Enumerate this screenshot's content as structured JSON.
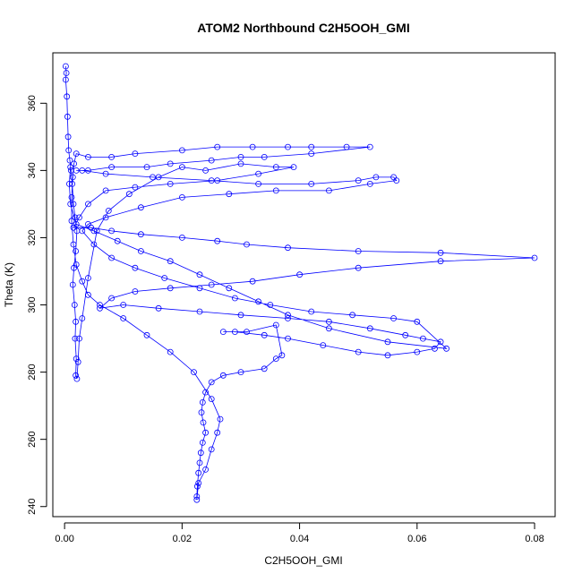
{
  "chart_data": {
    "type": "line",
    "title": "ATOM2 Northbound C2H5OOH_GMI",
    "xlabel": "C2H5OOH_GMI",
    "ylabel": "Theta (K)",
    "xlim": [
      -0.002,
      0.0835
    ],
    "ylim": [
      237,
      375
    ],
    "x_ticks": [
      0.0,
      0.02,
      0.04,
      0.06,
      0.08
    ],
    "x_tick_labels": [
      "0.00",
      "0.02",
      "0.04",
      "0.06",
      "0.08"
    ],
    "y_ticks": [
      240,
      260,
      280,
      300,
      320,
      340,
      360
    ],
    "y_tick_labels": [
      "240",
      "260",
      "280",
      "300",
      "320",
      "340",
      "360"
    ],
    "grid": false,
    "marker": "open-circle",
    "line_color": "#0000ff",
    "series": [
      {
        "points": [
          [
            0.0002,
            371
          ],
          [
            0.0003,
            369
          ],
          [
            0.0002,
            367
          ],
          [
            0.0004,
            362
          ],
          [
            0.0005,
            356
          ],
          [
            0.0006,
            350
          ],
          [
            0.0007,
            346
          ],
          [
            0.0009,
            343
          ],
          [
            0.0011,
            340
          ],
          [
            0.0013,
            336
          ],
          [
            0.0015,
            330
          ],
          [
            0.0018,
            326
          ],
          [
            0.0021,
            322
          ],
          [
            0.0019,
            316
          ],
          [
            0.0016,
            311
          ],
          [
            0.0014,
            306
          ],
          [
            0.0017,
            300
          ],
          [
            0.0019,
            295
          ],
          [
            0.0018,
            290
          ],
          [
            0.002,
            284
          ],
          [
            0.0019,
            279
          ],
          [
            0.0021,
            278
          ],
          [
            0.0023,
            283
          ],
          [
            0.0025,
            290
          ],
          [
            0.003,
            296
          ],
          [
            0.004,
            308
          ],
          [
            0.0055,
            322
          ],
          [
            0.0075,
            328
          ],
          [
            0.011,
            333
          ],
          [
            0.016,
            338
          ],
          [
            0.02,
            341
          ],
          [
            0.024,
            340
          ],
          [
            0.03,
            342
          ],
          [
            0.036,
            341
          ],
          [
            0.039,
            341
          ],
          [
            0.033,
            339
          ],
          [
            0.026,
            337
          ],
          [
            0.018,
            336
          ],
          [
            0.012,
            335
          ],
          [
            0.007,
            334
          ],
          [
            0.004,
            330
          ],
          [
            0.0025,
            326
          ],
          [
            0.0015,
            323
          ],
          [
            0.0045,
            323
          ],
          [
            0.008,
            322
          ],
          [
            0.013,
            321
          ],
          [
            0.02,
            320
          ],
          [
            0.026,
            319
          ],
          [
            0.031,
            318
          ],
          [
            0.038,
            317
          ],
          [
            0.05,
            316
          ],
          [
            0.064,
            315.5
          ],
          [
            0.08,
            314
          ],
          [
            0.064,
            313
          ],
          [
            0.05,
            311
          ],
          [
            0.04,
            309
          ],
          [
            0.032,
            307
          ],
          [
            0.025,
            306
          ],
          [
            0.018,
            305
          ],
          [
            0.012,
            304
          ],
          [
            0.008,
            302
          ],
          [
            0.006,
            299
          ],
          [
            0.01,
            300
          ],
          [
            0.016,
            299
          ],
          [
            0.023,
            298
          ],
          [
            0.03,
            297
          ],
          [
            0.038,
            296
          ],
          [
            0.045,
            295
          ],
          [
            0.052,
            293
          ],
          [
            0.058,
            291
          ],
          [
            0.061,
            290
          ],
          [
            0.064,
            289
          ],
          [
            0.063,
            287
          ],
          [
            0.06,
            286
          ],
          [
            0.055,
            285
          ],
          [
            0.05,
            286
          ],
          [
            0.044,
            288
          ],
          [
            0.038,
            290
          ],
          [
            0.034,
            291
          ],
          [
            0.029,
            292
          ],
          [
            0.027,
            292
          ],
          [
            0.031,
            292
          ],
          [
            0.036,
            294
          ],
          [
            0.037,
            285
          ],
          [
            0.036,
            284
          ],
          [
            0.034,
            281
          ],
          [
            0.03,
            280
          ],
          [
            0.027,
            279
          ],
          [
            0.025,
            277
          ],
          [
            0.024,
            274
          ],
          [
            0.0235,
            271
          ],
          [
            0.0233,
            268
          ],
          [
            0.0236,
            265
          ],
          [
            0.024,
            262
          ],
          [
            0.0235,
            259
          ],
          [
            0.0232,
            256
          ],
          [
            0.023,
            253
          ],
          [
            0.0228,
            250
          ],
          [
            0.0226,
            246
          ],
          [
            0.0225,
            243
          ],
          [
            0.0225,
            242
          ],
          [
            0.0228,
            247
          ],
          [
            0.024,
            251
          ],
          [
            0.025,
            257
          ],
          [
            0.026,
            262
          ],
          [
            0.0265,
            266
          ],
          [
            0.025,
            272
          ],
          [
            0.022,
            280
          ],
          [
            0.018,
            286
          ],
          [
            0.014,
            291
          ],
          [
            0.01,
            296
          ],
          [
            0.006,
            300
          ],
          [
            0.004,
            303
          ],
          [
            0.003,
            307
          ],
          [
            0.002,
            312
          ],
          [
            0.0015,
            318
          ],
          [
            0.0012,
            325
          ],
          [
            0.0012,
            332
          ],
          [
            0.0014,
            338
          ],
          [
            0.0016,
            342
          ],
          [
            0.002,
            345
          ],
          [
            0.004,
            344
          ],
          [
            0.008,
            344
          ],
          [
            0.012,
            345
          ],
          [
            0.02,
            346
          ],
          [
            0.026,
            347
          ],
          [
            0.032,
            347
          ],
          [
            0.038,
            347
          ],
          [
            0.042,
            347
          ],
          [
            0.048,
            347
          ],
          [
            0.052,
            347
          ],
          [
            0.042,
            345
          ],
          [
            0.034,
            344
          ],
          [
            0.03,
            344
          ],
          [
            0.025,
            343
          ],
          [
            0.018,
            342
          ],
          [
            0.014,
            341
          ],
          [
            0.008,
            341
          ],
          [
            0.004,
            340
          ],
          [
            0.002,
            340
          ],
          [
            0.003,
            340
          ],
          [
            0.007,
            339
          ],
          [
            0.015,
            338
          ],
          [
            0.025,
            337
          ],
          [
            0.033,
            336
          ],
          [
            0.042,
            336
          ],
          [
            0.05,
            337
          ],
          [
            0.053,
            338
          ],
          [
            0.056,
            338
          ],
          [
            0.0565,
            337
          ],
          [
            0.052,
            336
          ],
          [
            0.045,
            334
          ],
          [
            0.036,
            334
          ],
          [
            0.028,
            333
          ],
          [
            0.02,
            332
          ],
          [
            0.013,
            329
          ],
          [
            0.007,
            326
          ],
          [
            0.004,
            324
          ],
          [
            0.003,
            322
          ],
          [
            0.005,
            318
          ],
          [
            0.008,
            314
          ],
          [
            0.012,
            311
          ],
          [
            0.017,
            308
          ],
          [
            0.023,
            305
          ],
          [
            0.029,
            302
          ],
          [
            0.035,
            300
          ],
          [
            0.042,
            298
          ],
          [
            0.049,
            297
          ],
          [
            0.056,
            296
          ],
          [
            0.06,
            295
          ],
          [
            0.065,
            287
          ],
          [
            0.055,
            289
          ],
          [
            0.045,
            293
          ],
          [
            0.038,
            297
          ],
          [
            0.033,
            301
          ],
          [
            0.028,
            305
          ],
          [
            0.023,
            309
          ],
          [
            0.018,
            313
          ],
          [
            0.013,
            316
          ],
          [
            0.009,
            319
          ],
          [
            0.005,
            322
          ],
          [
            0.002,
            324
          ],
          [
            0.001,
            330
          ],
          [
            0.0008,
            336
          ],
          [
            0.001,
            341
          ]
        ]
      }
    ]
  }
}
